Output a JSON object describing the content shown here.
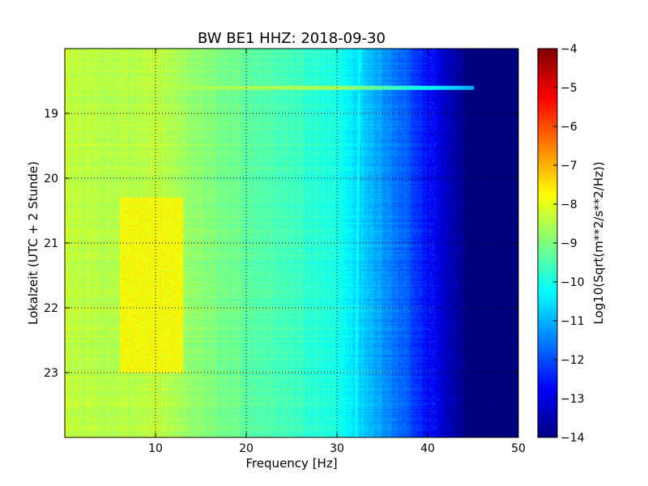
{
  "chart_data": {
    "type": "heatmap",
    "title": "BW BE1 HHZ: 2018-09-30",
    "xlabel": "Frequency [Hz]",
    "ylabel": "Lokalzeit (UTC + 2 Stunde)",
    "xlim": [
      0,
      50
    ],
    "ylim": [
      24,
      18
    ],
    "xticks": [
      10,
      20,
      30,
      40,
      50
    ],
    "yticks": [
      19,
      20,
      21,
      22,
      23
    ],
    "grid": true,
    "colorbar": {
      "label": "Log10(Sqrt(m**2/s**2/Hz))",
      "range": [
        -14,
        -4
      ],
      "ticks": [
        -4,
        -5,
        -6,
        -7,
        -8,
        -9,
        -10,
        -11,
        -12,
        -13,
        -14
      ],
      "colormap": "jet"
    },
    "spectral_profile": {
      "frequency_hz": [
        0,
        5,
        10,
        15,
        20,
        25,
        30,
        33,
        35,
        38,
        40,
        42,
        44,
        50
      ],
      "log10_amplitude": [
        -8.3,
        -8.5,
        -8.4,
        -8.9,
        -9.3,
        -9.6,
        -10.0,
        -10.8,
        -11.2,
        -12.0,
        -12.7,
        -13.5,
        -14.0,
        -14.0
      ]
    },
    "features": [
      {
        "label": "narrowband line",
        "time_hours": 18.6,
        "frequency_range_hz": [
          0,
          45
        ],
        "log10_amplitude": -10.5
      },
      {
        "label": "elevated energy",
        "time_range_hours": [
          20.3,
          23.0
        ],
        "frequency_range_hz": [
          6,
          13
        ],
        "log10_amplitude": -7.8
      },
      {
        "label": "gliding tone",
        "time_range_hours": [
          18.0,
          24.0
        ],
        "frequency_start_hz": 32.5,
        "frequency_end_hz": 32.0,
        "log10_amplitude": -10.8
      }
    ]
  }
}
